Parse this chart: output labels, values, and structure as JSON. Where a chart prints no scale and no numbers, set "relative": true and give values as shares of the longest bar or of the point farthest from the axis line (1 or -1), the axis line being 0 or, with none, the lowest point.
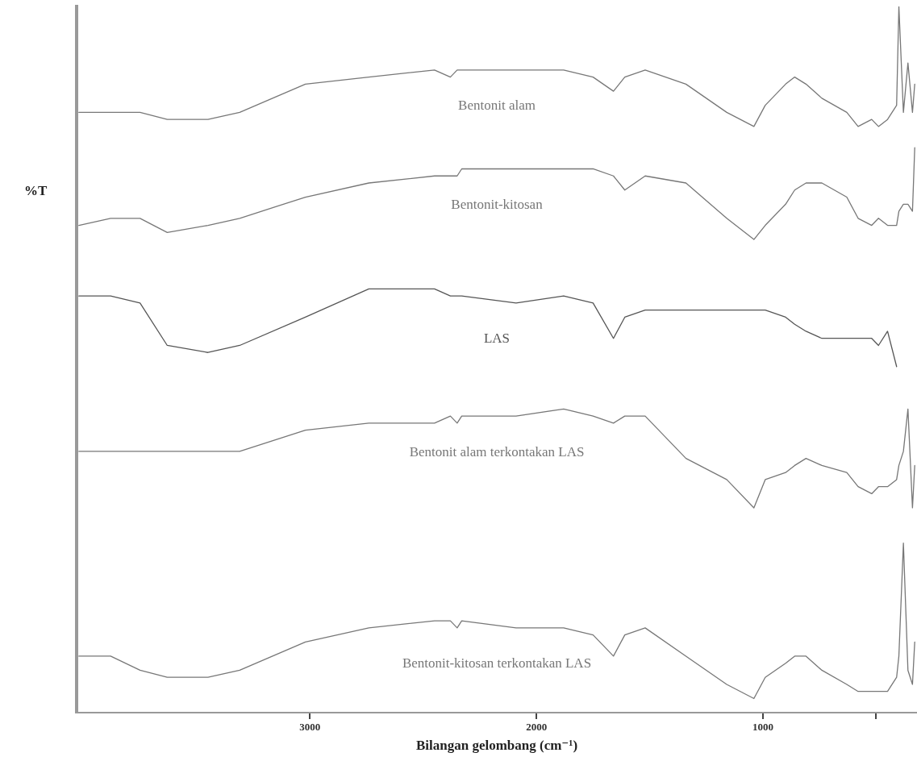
{
  "chart_data": {
    "type": "line",
    "relative": true,
    "xlabel": "Bilangan gelombang (cm⁻¹)",
    "ylabel": "%T",
    "x": [
      4020,
      3880,
      3750,
      3630,
      3450,
      3310,
      3020,
      2740,
      2450,
      2380,
      2350,
      2330,
      2090,
      1880,
      1750,
      1660,
      1610,
      1520,
      1340,
      1160,
      1040,
      990,
      900,
      860,
      810,
      740,
      630,
      580,
      520,
      490,
      450,
      410,
      400,
      380,
      360,
      340,
      330
    ],
    "xlim": [
      4030,
      320
    ],
    "xticks": [
      3000,
      2000,
      1000,
      {
        "value": 500,
        "label": null
      }
    ],
    "grid": false,
    "legend": false,
    "marker": "none",
    "line_style": "solid",
    "series": [
      {
        "name": "Bentonit alam",
        "color": "#777777",
        "values": [
          0.85,
          0.85,
          0.85,
          0.84,
          0.84,
          0.85,
          0.89,
          0.9,
          0.91,
          0.9,
          0.91,
          0.91,
          0.91,
          0.91,
          0.9,
          0.88,
          0.9,
          0.91,
          0.89,
          0.85,
          0.83,
          0.86,
          0.89,
          0.9,
          0.89,
          0.87,
          0.85,
          0.83,
          0.84,
          0.83,
          0.84,
          0.86,
          1,
          0.85,
          0.92,
          0.85,
          0.89
        ]
      },
      {
        "name": "Bentonit-kitosan",
        "color": "#777777",
        "values": [
          0.69,
          0.7,
          0.7,
          0.68,
          0.69,
          0.7,
          0.73,
          0.75,
          0.76,
          0.76,
          0.76,
          0.77,
          0.77,
          0.77,
          0.77,
          0.76,
          0.74,
          0.76,
          0.75,
          0.7,
          0.67,
          0.69,
          0.72,
          0.74,
          0.75,
          0.75,
          0.73,
          0.7,
          0.69,
          0.7,
          0.69,
          0.69,
          0.71,
          0.72,
          0.72,
          0.71,
          0.8
        ]
      },
      {
        "name": "LAS",
        "color": "#555555",
        "values": [
          0.59,
          0.59,
          0.58,
          0.52,
          0.51,
          0.52,
          0.56,
          0.6,
          0.6,
          0.59,
          0.59,
          0.59,
          0.58,
          0.59,
          0.58,
          0.53,
          0.56,
          0.57,
          0.57,
          0.57,
          0.57,
          0.57,
          0.56,
          0.55,
          0.54,
          0.53,
          0.53,
          0.53,
          0.53,
          0.52,
          0.54,
          0.49,
          null,
          null,
          null,
          null,
          null
        ]
      },
      {
        "name": "Bentonit alam terkontakan LAS",
        "color": "#777777",
        "values": [
          0.37,
          0.37,
          0.37,
          0.37,
          0.37,
          0.37,
          0.4,
          0.41,
          0.41,
          0.42,
          0.41,
          0.42,
          0.42,
          0.43,
          0.42,
          0.41,
          0.42,
          0.42,
          0.36,
          0.33,
          0.29,
          0.33,
          0.34,
          0.35,
          0.36,
          0.35,
          0.34,
          0.32,
          0.31,
          0.32,
          0.32,
          0.33,
          0.35,
          0.37,
          0.43,
          0.29,
          0.35
        ]
      },
      {
        "name": "Bentonit-kitosan terkontakan LAS",
        "color": "#777777",
        "values": [
          0.08,
          0.08,
          0.06,
          0.05,
          0.05,
          0.06,
          0.1,
          0.12,
          0.13,
          0.13,
          0.12,
          0.13,
          0.12,
          0.12,
          0.11,
          0.08,
          0.11,
          0.12,
          0.08,
          0.04,
          0.02,
          0.05,
          0.07,
          0.08,
          0.08,
          0.06,
          0.04,
          0.03,
          0.03,
          0.03,
          0.03,
          0.05,
          0.08,
          0.24,
          0.06,
          0.04,
          0.1
        ]
      }
    ]
  }
}
